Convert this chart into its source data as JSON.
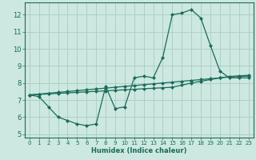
{
  "xlabel": "Humidex (Indice chaleur)",
  "bg_color": "#cce8e0",
  "grid_color": "#aaccc4",
  "line_color": "#1a6b5a",
  "xlim": [
    -0.5,
    23.5
  ],
  "ylim": [
    4.8,
    12.7
  ],
  "yticks": [
    5,
    6,
    7,
    8,
    9,
    10,
    11,
    12
  ],
  "xticks": [
    0,
    1,
    2,
    3,
    4,
    5,
    6,
    7,
    8,
    9,
    10,
    11,
    12,
    13,
    14,
    15,
    16,
    17,
    18,
    19,
    20,
    21,
    22,
    23
  ],
  "series1_x": [
    0,
    1,
    2,
    3,
    4,
    5,
    6,
    7,
    8,
    9,
    10,
    11,
    12,
    13,
    14,
    15,
    16,
    17,
    18,
    19,
    20,
    21,
    22,
    23
  ],
  "series1_y": [
    7.3,
    7.2,
    6.6,
    6.0,
    5.8,
    5.6,
    5.5,
    5.6,
    7.8,
    6.5,
    6.6,
    8.3,
    8.4,
    8.3,
    9.5,
    12.0,
    12.1,
    12.3,
    11.8,
    10.2,
    8.7,
    8.3,
    8.3,
    8.3
  ],
  "series2_x": [
    0,
    1,
    2,
    3,
    4,
    5,
    6,
    7,
    8,
    9,
    10,
    11,
    12,
    13,
    14,
    15,
    16,
    17,
    18,
    19,
    20,
    21,
    22,
    23
  ],
  "series2_y": [
    7.3,
    7.35,
    7.4,
    7.45,
    7.5,
    7.55,
    7.6,
    7.65,
    7.7,
    7.75,
    7.8,
    7.85,
    7.9,
    7.95,
    8.0,
    8.05,
    8.1,
    8.15,
    8.2,
    8.25,
    8.3,
    8.35,
    8.38,
    8.4
  ],
  "series3_x": [
    0,
    1,
    2,
    3,
    4,
    5,
    6,
    7,
    8,
    9,
    10,
    11,
    12,
    13,
    14,
    15,
    16,
    17,
    18,
    19,
    20,
    21,
    22,
    23
  ],
  "series3_y": [
    7.3,
    7.33,
    7.36,
    7.39,
    7.42,
    7.45,
    7.48,
    7.51,
    7.54,
    7.57,
    7.6,
    7.63,
    7.66,
    7.69,
    7.72,
    7.75,
    7.87,
    8.0,
    8.1,
    8.2,
    8.3,
    8.38,
    8.42,
    8.45
  ],
  "marker_size": 2.5,
  "line_width": 0.9,
  "xlabel_fontsize": 6.0,
  "tick_fontsize_x": 5.0,
  "tick_fontsize_y": 6.0
}
